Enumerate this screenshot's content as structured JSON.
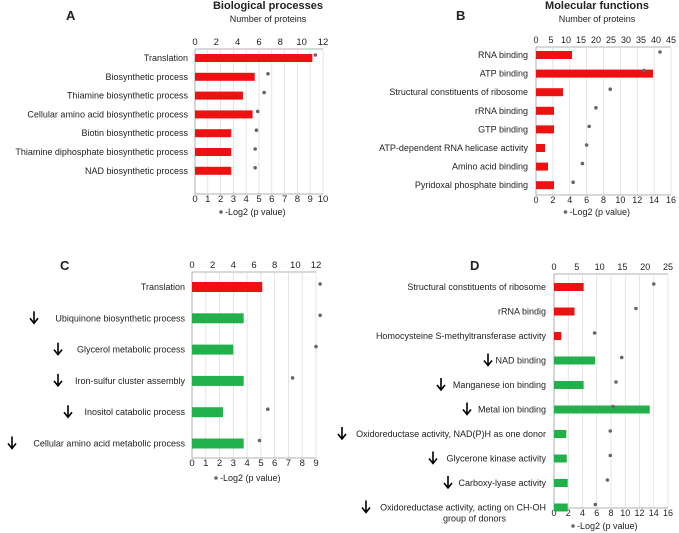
{
  "colors": {
    "up": "#ee1111",
    "down": "#22b04a",
    "dot": "#666666",
    "grid": "#d9d9d9",
    "axis": "#999999"
  },
  "panels": [
    {
      "letter": "A",
      "title": "Biological processes",
      "subtitle": "Number of proteins",
      "xlabel": "-Log2 (p value)",
      "chart_data": {
        "type": "bar",
        "title": "Biological processes",
        "xlabel_top": "Number of proteins",
        "xlabel_bottom": "-Log2 (p value)",
        "top_axis": {
          "min": 0,
          "max": 12,
          "ticks": [
            "0",
            "2",
            "4",
            "6",
            "8",
            "10",
            "12"
          ]
        },
        "bottom_axis": {
          "min": 0,
          "max": 10,
          "ticks": [
            "0",
            "1",
            "2",
            "3",
            "4",
            "5",
            "6",
            "7",
            "8",
            "9",
            "10"
          ]
        },
        "categories": [
          "Translation",
          "Biosynthetic process",
          "Thiamine biosynthetic process",
          "Cellular amino acid biosynthetic process",
          "Biotin biosynthetic process",
          "Thiamine diphosphate biosynthetic process",
          "NAD biosynthetic process"
        ],
        "series": [
          {
            "name": "Number of proteins",
            "axis": "top",
            "values": [
              11,
              5.6,
              4.5,
              5.4,
              3.4,
              3.4,
              3.4
            ],
            "colors": [
              "up",
              "up",
              "up",
              "up",
              "up",
              "up",
              "up"
            ]
          },
          {
            "name": "-Log2 (p value)",
            "axis": "bottom",
            "values": [
              9.4,
              5.7,
              5.4,
              4.9,
              4.8,
              4.7,
              4.7
            ]
          }
        ],
        "arrows": [
          false,
          false,
          false,
          false,
          false,
          false,
          false
        ]
      }
    },
    {
      "letter": "B",
      "title": "Molecular functions",
      "subtitle": "Number of proteins",
      "xlabel": "-Log2 (p value)",
      "chart_data": {
        "type": "bar",
        "title": "Molecular functions",
        "xlabel_top": "Number of proteins",
        "xlabel_bottom": "-Log2 (p value)",
        "top_axis": {
          "min": 0,
          "max": 45,
          "ticks": [
            "0",
            "5",
            "10",
            "15",
            "20",
            "25",
            "30",
            "35",
            "40",
            "45"
          ]
        },
        "bottom_axis": {
          "min": 0,
          "max": 16,
          "ticks": [
            "0",
            "2",
            "4",
            "6",
            "8",
            "10",
            "12",
            "14",
            "16"
          ]
        },
        "categories": [
          "RNA binding",
          "ATP binding",
          "Structural constituents of ribosome",
          "rRNA binding",
          "GTP binding",
          "ATP-dependent  RNA  helicase activity",
          "Amino acid binding",
          "Pyridoxal phosphate binding"
        ],
        "series": [
          {
            "name": "Number of proteins",
            "axis": "top",
            "values": [
              12,
              39,
              9,
              6,
              6,
              3,
              4,
              6
            ],
            "colors": [
              "up",
              "up",
              "up",
              "up",
              "up",
              "up",
              "up",
              "up"
            ]
          },
          {
            "name": "-Log2 (p value)",
            "axis": "bottom",
            "values": [
              14.7,
              12.8,
              8.8,
              7.1,
              6.3,
              6.0,
              5.5,
              4.4
            ]
          }
        ],
        "arrows": [
          false,
          false,
          false,
          false,
          false,
          false,
          false,
          false
        ]
      }
    },
    {
      "letter": "C",
      "title": "",
      "subtitle": "",
      "xlabel": "-Log2 (p value)",
      "chart_data": {
        "type": "bar",
        "xlabel_bottom": "-Log2 (p value)",
        "top_axis": {
          "min": 0,
          "max": 12,
          "ticks": [
            "0",
            "2",
            "4",
            "6",
            "8",
            "10",
            "12"
          ]
        },
        "bottom_axis": {
          "min": 0,
          "max": 9,
          "ticks": [
            "0",
            "1",
            "2",
            "3",
            "4",
            "5",
            "6",
            "7",
            "8",
            "9"
          ]
        },
        "categories": [
          "Translation",
          "Ubiquinone biosynthetic process",
          "Glycerol metabolic process",
          "Iron-sulfur cluster assembly",
          "Inositol catabolic process",
          "Cellular amino acid metabolic process"
        ],
        "series": [
          {
            "name": "Number of proteins",
            "axis": "top",
            "values": [
              6.8,
              5,
              4,
              5,
              3,
              5
            ],
            "colors": [
              "up",
              "down",
              "down",
              "down",
              "down",
              "down"
            ]
          },
          {
            "name": "-Log2 (p value)",
            "axis": "bottom",
            "values": [
              9.3,
              9.3,
              9.0,
              7.3,
              5.5,
              4.9
            ]
          }
        ],
        "arrows": [
          false,
          true,
          true,
          true,
          true,
          true
        ]
      }
    },
    {
      "letter": "D",
      "title": "",
      "subtitle": "",
      "xlabel": "-Log2 (p value)",
      "chart_data": {
        "type": "bar",
        "xlabel_bottom": "-Log2 (p value)",
        "top_axis": {
          "min": 0,
          "max": 25,
          "ticks": [
            "0",
            "5",
            "10",
            "15",
            "20",
            "25"
          ]
        },
        "bottom_axis": {
          "min": 0,
          "max": 16,
          "ticks": [
            "0",
            "2",
            "4",
            "6",
            "8",
            "10",
            "12",
            "14",
            "16"
          ]
        },
        "categories": [
          "Structural constituents of ribosome",
          "rRNA bindig",
          "Homocysteine S-methyltransferase activity",
          "NAD binding",
          "Manganese ion binding",
          "Metal ion binding",
          "Oxidoreductase activity, NAD(P)H as one donor",
          "Glycerone kinase activity",
          "Carboxy-lyase activity",
          "Oxidoreductase activity, acting on CH-OH group of donors"
        ],
        "series": [
          {
            "name": "Number of proteins",
            "axis": "top",
            "values": [
              6.5,
              4.5,
              1.6,
              9,
              6.5,
              21,
              2.7,
              2.8,
              3,
              3
            ],
            "colors": [
              "up",
              "up",
              "up",
              "down",
              "down",
              "down",
              "down",
              "down",
              "down",
              "down"
            ]
          },
          {
            "name": "-Log2 (p value)",
            "axis": "bottom",
            "values": [
              14.0,
              11.5,
              5.7,
              9.5,
              8.7,
              8.3,
              7.9,
              7.9,
              7.5,
              5.8
            ]
          }
        ],
        "arrows": [
          false,
          false,
          false,
          true,
          true,
          true,
          true,
          true,
          true,
          true
        ]
      }
    }
  ]
}
